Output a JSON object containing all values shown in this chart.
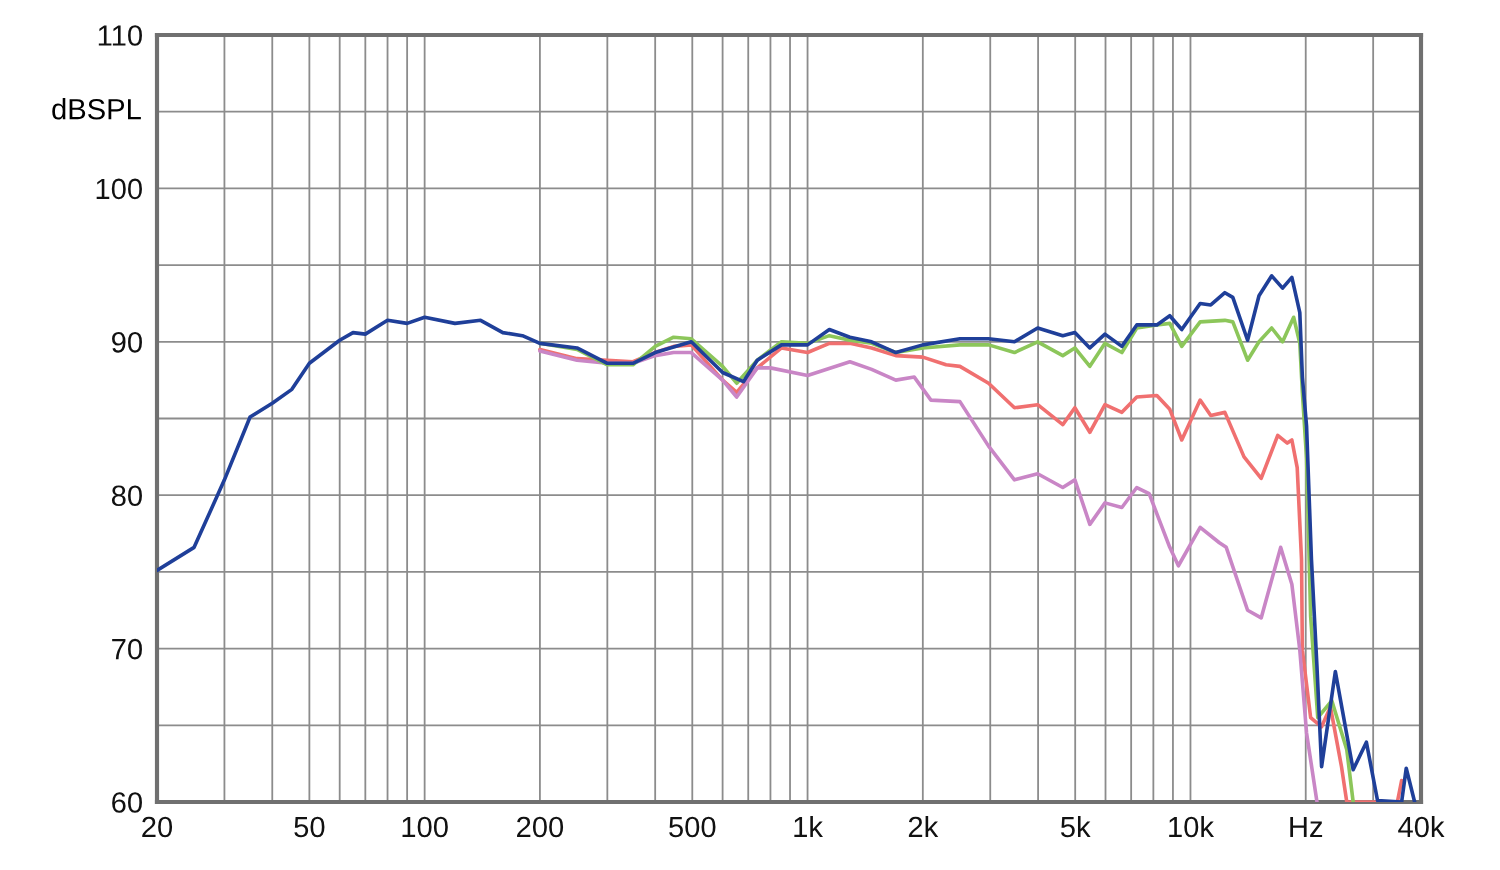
{
  "chart_data": {
    "type": "line",
    "ylabel": "dBSPL",
    "log": "x",
    "grid": true,
    "marker": "none",
    "line_style": "solid",
    "xlim": [
      20,
      40000
    ],
    "ylim": [
      60,
      110
    ],
    "xticks": [
      20,
      {
        "value": 30,
        "label": null
      },
      {
        "value": 40,
        "label": null
      },
      50,
      {
        "value": 60,
        "label": null
      },
      {
        "value": 70,
        "label": null
      },
      {
        "value": 80,
        "label": null
      },
      {
        "value": 90,
        "label": null
      },
      100,
      200,
      {
        "value": 300,
        "label": null
      },
      {
        "value": 400,
        "label": null
      },
      500,
      {
        "value": 600,
        "label": null
      },
      {
        "value": 700,
        "label": null
      },
      {
        "value": 800,
        "label": null
      },
      {
        "value": 900,
        "label": null
      },
      {
        "value": 1000,
        "label": "1k"
      },
      {
        "value": 2000,
        "label": "2k"
      },
      {
        "value": 3000,
        "label": null
      },
      {
        "value": 4000,
        "label": null
      },
      {
        "value": 5000,
        "label": "5k"
      },
      {
        "value": 6000,
        "label": null
      },
      {
        "value": 7000,
        "label": null
      },
      {
        "value": 8000,
        "label": null
      },
      {
        "value": 9000,
        "label": null
      },
      {
        "value": 10000,
        "label": "10k"
      },
      {
        "value": 20000,
        "label": "Hz"
      },
      {
        "value": 30000,
        "label": null
      },
      {
        "value": 40000,
        "label": "40k"
      }
    ],
    "yticks": [
      60,
      {
        "value": 65,
        "label": null
      },
      70,
      {
        "value": 75,
        "label": null
      },
      80,
      {
        "value": 85,
        "label": null
      },
      90,
      {
        "value": 95,
        "label": null
      },
      100,
      {
        "value": 105,
        "label": null
      },
      110
    ],
    "series": [
      {
        "color": "#f07070",
        "x": [
          200,
          250,
          300,
          350,
          400,
          447,
          497,
          600,
          653,
          739,
          855,
          1000,
          1140,
          1290,
          1470,
          1700,
          2000,
          2300,
          2500,
          2970,
          3470,
          3990,
          4640,
          4990,
          5460,
          5980,
          6620,
          7240,
          8170,
          8830,
          9490,
          10600,
          11300,
          12300,
          13800,
          15300,
          16900,
          17900,
          18400,
          19000,
          19500,
          19600,
          20600,
          22000,
          23200,
          24800,
          25600,
          34700,
          35600
        ],
        "values": [
          89.5,
          88.9,
          88.8,
          88.7,
          89.3,
          89.7,
          89.8,
          87.5,
          86.7,
          88.3,
          89.6,
          89.3,
          89.9,
          89.9,
          89.6,
          89.1,
          89.0,
          88.5,
          88.4,
          87.3,
          85.7,
          85.9,
          84.6,
          85.7,
          84.1,
          85.9,
          85.4,
          86.4,
          86.5,
          85.6,
          83.6,
          86.2,
          85.2,
          85.4,
          82.5,
          81.1,
          83.9,
          83.4,
          83.6,
          81.8,
          75.8,
          69.9,
          65.5,
          64.9,
          66.2,
          62.3,
          60,
          60,
          61.4
        ]
      },
      {
        "color": "#c986c6",
        "x": [
          200,
          250,
          300,
          350,
          400,
          447,
          497,
          600,
          653,
          739,
          800,
          1000,
          1290,
          1470,
          1700,
          1900,
          2100,
          2500,
          2970,
          3470,
          3990,
          4640,
          4990,
          5460,
          5980,
          6620,
          7240,
          7800,
          8830,
          9300,
          10600,
          11900,
          12400,
          14100,
          15300,
          17200,
          18400,
          19300,
          20100,
          21400
        ],
        "values": [
          89.4,
          88.8,
          88.6,
          88.6,
          89.1,
          89.3,
          89.3,
          87.5,
          86.4,
          88.3,
          88.3,
          87.8,
          88.7,
          88.2,
          87.5,
          87.7,
          86.2,
          86.1,
          83.2,
          81.0,
          81.4,
          80.5,
          81.0,
          78.1,
          79.5,
          79.2,
          80.5,
          80.1,
          76.6,
          75.4,
          77.9,
          76.9,
          76.6,
          72.5,
          72.0,
          76.6,
          74.2,
          69.9,
          64.5,
          60
        ]
      },
      {
        "color": "#8cc65a",
        "x": [
          200,
          250,
          300,
          350,
          400,
          447,
          497,
          600,
          653,
          739,
          855,
          1000,
          1140,
          1290,
          1470,
          1700,
          2000,
          2500,
          2970,
          3470,
          3990,
          4640,
          4990,
          5460,
          5980,
          6620,
          7240,
          8170,
          8830,
          9490,
          10600,
          12300,
          12900,
          14100,
          15100,
          16300,
          17400,
          18600,
          19300,
          19600,
          20100,
          20600,
          21500,
          23400,
          25600,
          26600
        ],
        "values": [
          89.9,
          89.5,
          88.5,
          88.5,
          89.7,
          90.3,
          90.2,
          88.4,
          87.3,
          88.8,
          90.0,
          89.9,
          90.4,
          90.1,
          89.9,
          89.3,
          89.6,
          89.8,
          89.8,
          89.3,
          90.0,
          89.1,
          89.6,
          88.4,
          89.9,
          89.3,
          90.9,
          91.1,
          91.2,
          89.7,
          91.3,
          91.4,
          91.3,
          88.8,
          90.0,
          90.9,
          90.0,
          91.6,
          89.9,
          86.7,
          82.4,
          72.1,
          65.5,
          66.6,
          63.4,
          60
        ]
      },
      {
        "color": "#1f3f99",
        "x": [
          20,
          25,
          30,
          35,
          40,
          45,
          50,
          60,
          65,
          70,
          80,
          90,
          100,
          120,
          140,
          160,
          180,
          200,
          250,
          300,
          350,
          400,
          497,
          600,
          680,
          739,
          855,
          1000,
          1140,
          1290,
          1470,
          1700,
          2000,
          2500,
          2970,
          3470,
          3990,
          4640,
          4990,
          5460,
          5980,
          6620,
          7240,
          8170,
          8830,
          9490,
          10600,
          11300,
          12300,
          12900,
          14100,
          15100,
          16300,
          17400,
          18400,
          19300,
          19600,
          20100,
          20700,
          21400,
          22000,
          23900,
          26600,
          28800,
          30800,
          35600,
          36600,
          38500
        ],
        "values": [
          75.1,
          76.6,
          81.0,
          85.1,
          86.0,
          86.9,
          88.6,
          90.1,
          90.6,
          90.5,
          91.4,
          91.2,
          91.6,
          91.2,
          91.4,
          90.6,
          90.4,
          89.9,
          89.6,
          88.6,
          88.6,
          89.3,
          90.0,
          88.0,
          87.4,
          88.8,
          89.8,
          89.8,
          90.8,
          90.3,
          90.0,
          89.3,
          89.8,
          90.2,
          90.2,
          90.0,
          90.9,
          90.4,
          90.6,
          89.6,
          90.5,
          89.7,
          91.1,
          91.1,
          91.7,
          90.8,
          92.5,
          92.4,
          93.2,
          92.9,
          90.1,
          93.0,
          94.3,
          93.5,
          94.2,
          91.9,
          87.7,
          84.5,
          75.8,
          68.8,
          62.3,
          68.5,
          62.1,
          63.9,
          60.1,
          60,
          62.2,
          60
        ]
      }
    ]
  }
}
